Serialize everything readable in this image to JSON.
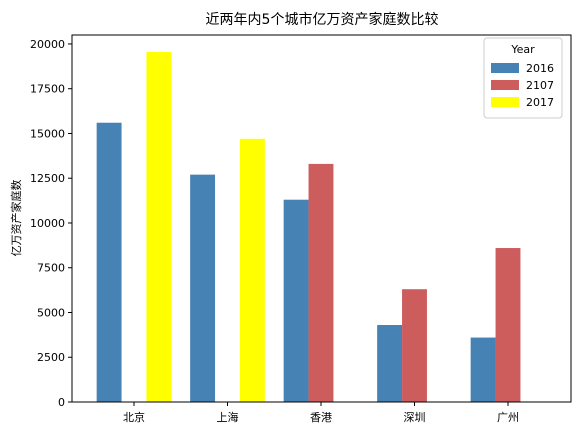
{
  "chart_data": {
    "type": "bar",
    "title": "近两年内5个城市亿万资产家庭数比较",
    "xlabel": "",
    "ylabel": "亿万资产家庭数",
    "categories": [
      "北京",
      "上海",
      "香港",
      "深圳",
      "广州"
    ],
    "ylim": [
      0,
      20500
    ],
    "yticks": [
      0,
      2500,
      5000,
      7500,
      10000,
      12500,
      15000,
      17500,
      20000
    ],
    "legend": {
      "title": "Year",
      "position": "top-right"
    },
    "series": [
      {
        "name": "2016",
        "color": "#4682b4",
        "values": [
          15600,
          12700,
          11300,
          4300,
          3600
        ]
      },
      {
        "name": "2107",
        "color": "#cd5c5c",
        "values": [
          null,
          null,
          13300,
          6300,
          8600
        ]
      },
      {
        "name": "2017",
        "color": "#ffff00",
        "values": [
          19550,
          14700,
          null,
          null,
          null
        ]
      }
    ]
  }
}
